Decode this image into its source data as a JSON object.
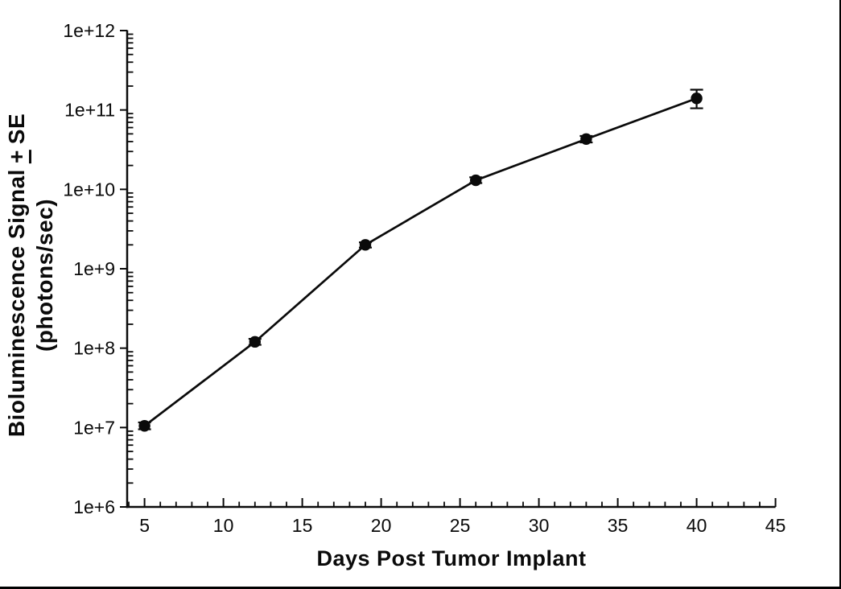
{
  "figure": {
    "background": "#ffffff",
    "frame_color": "#000000",
    "ink_color": "#0a0a0a"
  },
  "chart_data": {
    "type": "line",
    "title": "",
    "xlabel": "Days Post Tumor Implant",
    "ylabel": {
      "pre": "Bioluminescence Signal",
      "plus_underlined": "+",
      "post": "SE",
      "line2": "(photons/sec)"
    },
    "x": [
      5,
      12,
      19,
      26,
      33,
      40
    ],
    "series": [
      {
        "name": "Bioluminescence Signal",
        "marker": "filled-circle",
        "color": "#0a0a0a",
        "values": [
          10500000.0,
          120000000.0,
          2000000000.0,
          13000000000.0,
          43000000000.0,
          140000000000.0
        ],
        "err_low": [
          9500000.0,
          110000000.0,
          1850000000.0,
          12000000000.0,
          39000000000.0,
          105000000000.0
        ],
        "err_high": [
          11600000.0,
          131000000.0,
          2150000000.0,
          14200000000.0,
          47000000000.0,
          180000000000.0
        ]
      }
    ],
    "x_axis": {
      "min": 4,
      "max": 45,
      "major_ticks": [
        5,
        10,
        15,
        20,
        25,
        30,
        35,
        40,
        45
      ],
      "major_tick_labels": [
        "5",
        "10",
        "15",
        "20",
        "25",
        "30",
        "35",
        "40",
        "45"
      ],
      "minor_tick_step": 1
    },
    "y_axis": {
      "scale": "log",
      "min": 1000000.0,
      "max": 1000000000000.0,
      "tick_values": [
        1000000.0,
        10000000.0,
        100000000.0,
        1000000000.0,
        10000000000.0,
        100000000000.0,
        1000000000000.0
      ],
      "tick_labels": [
        "1e+6",
        "1e+7",
        "1e+8",
        "1e+9",
        "1e+10",
        "1e+11",
        "1e+12"
      ],
      "minor_ticks": "log multiples 2-9 per decade"
    },
    "grid": false,
    "legend": "none",
    "error_bars": "standard error, capped"
  }
}
